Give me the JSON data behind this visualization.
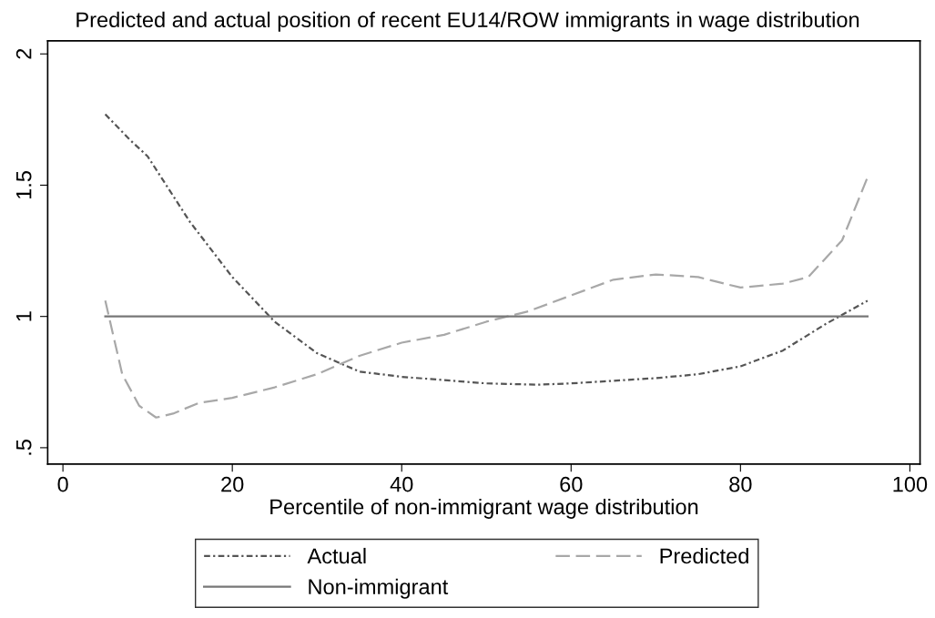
{
  "chart_data": {
    "type": "line",
    "title": "Predicted and actual position of recent EU14/ROW immigrants in wage distribution",
    "xlabel": "Percentile of non-immigrant wage distribution",
    "xlim": [
      -1.8,
      101.2
    ],
    "xticks": [
      0,
      20,
      40,
      60,
      80,
      100
    ],
    "ylim": [
      0.4375,
      2.05
    ],
    "yticks": [
      {
        "value": 0.5,
        "label": ".5"
      },
      1,
      1.5,
      2
    ],
    "grid": false,
    "legend": "bottom",
    "marker": "none",
    "series": [
      {
        "name": "Actual",
        "color": "#555555",
        "line_style": "dotted",
        "x": [
          5,
          8,
          10,
          15,
          20,
          25,
          30,
          35,
          40,
          50,
          56,
          60,
          70,
          75,
          80,
          85,
          90,
          95
        ],
        "values": [
          1.77,
          1.67,
          1.61,
          1.36,
          1.15,
          0.98,
          0.86,
          0.79,
          0.77,
          0.745,
          0.74,
          0.745,
          0.765,
          0.78,
          0.81,
          0.87,
          0.97,
          1.06
        ]
      },
      {
        "name": "Predicted",
        "color": "#a8a8a8",
        "line_style": "dashed",
        "x": [
          5,
          6,
          7,
          9,
          11,
          13,
          16,
          20,
          25,
          30,
          35,
          40,
          45,
          50,
          55,
          60,
          65,
          70,
          75,
          80,
          85,
          88,
          92,
          95
        ],
        "values": [
          1.06,
          0.92,
          0.78,
          0.66,
          0.615,
          0.63,
          0.67,
          0.69,
          0.73,
          0.78,
          0.85,
          0.9,
          0.93,
          0.98,
          1.02,
          1.08,
          1.14,
          1.16,
          1.15,
          1.11,
          1.125,
          1.15,
          1.29,
          1.53
        ]
      },
      {
        "name": "Non-immigrant",
        "color": "#777777",
        "line_style": "solid",
        "x": [
          5,
          95
        ],
        "values": [
          1,
          1
        ]
      }
    ]
  }
}
